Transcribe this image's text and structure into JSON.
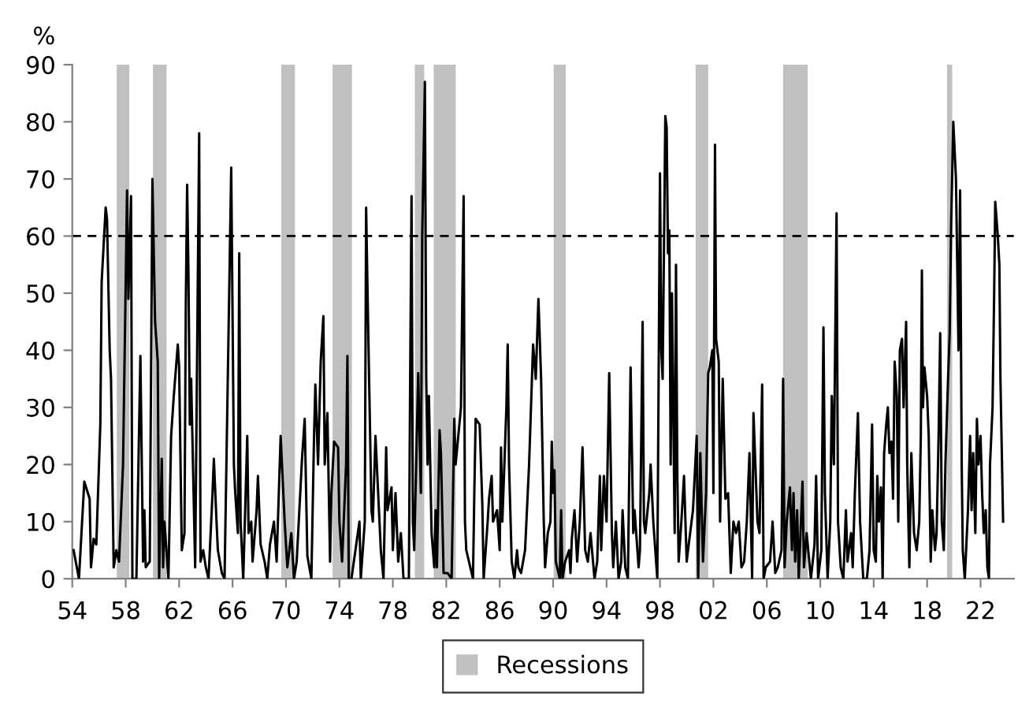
{
  "chart_data": {
    "type": "line",
    "ylabel": "%",
    "xlim": [
      1954,
      2024.5
    ],
    "ylim": [
      0,
      90
    ],
    "yticks": [
      0,
      10,
      20,
      30,
      40,
      50,
      60,
      70,
      80,
      90
    ],
    "xticks": [
      {
        "value": 1954,
        "label": "54"
      },
      {
        "value": 1958,
        "label": "58"
      },
      {
        "value": 1962,
        "label": "62"
      },
      {
        "value": 1966,
        "label": "66"
      },
      {
        "value": 1970,
        "label": "70"
      },
      {
        "value": 1974,
        "label": "74"
      },
      {
        "value": 1978,
        "label": "78"
      },
      {
        "value": 1982,
        "label": "82"
      },
      {
        "value": 1986,
        "label": "86"
      },
      {
        "value": 1990,
        "label": "90"
      },
      {
        "value": 1994,
        "label": "94"
      },
      {
        "value": 1998,
        "label": "98"
      },
      {
        "value": 2002,
        "label": "02"
      },
      {
        "value": 2006,
        "label": "06"
      },
      {
        "value": 2010,
        "label": "10"
      },
      {
        "value": 2014,
        "label": "14"
      },
      {
        "value": 2018,
        "label": "18"
      },
      {
        "value": 2022,
        "label": "22"
      }
    ],
    "grid": false,
    "legend": "bottom",
    "line_style": "solid",
    "marker": "none",
    "ref_lines": [
      {
        "axis": "y",
        "value": 60,
        "color": "#000000",
        "line_style": "dashed"
      }
    ],
    "bands": [
      {
        "axis": "x",
        "from": 1957.33,
        "to": 1958.27,
        "label": "Recessions",
        "color": "#c0c0c0"
      },
      {
        "axis": "x",
        "from": 1960.04,
        "to": 1961.06,
        "color": "#c0c0c0"
      },
      {
        "axis": "x",
        "from": 1969.65,
        "to": 1970.67,
        "color": "#c0c0c0"
      },
      {
        "axis": "x",
        "from": 1973.49,
        "to": 1974.94,
        "color": "#c0c0c0"
      },
      {
        "axis": "x",
        "from": 1979.65,
        "to": 1980.35,
        "color": "#c0c0c0"
      },
      {
        "axis": "x",
        "from": 1981.06,
        "to": 1982.71,
        "color": "#c0c0c0"
      },
      {
        "axis": "x",
        "from": 1990.04,
        "to": 1990.94,
        "color": "#c0c0c0"
      },
      {
        "axis": "x",
        "from": 2000.67,
        "to": 2001.61,
        "color": "#c0c0c0"
      },
      {
        "axis": "x",
        "from": 2007.22,
        "to": 2009.06,
        "color": "#c0c0c0"
      },
      {
        "axis": "x",
        "from": 2019.49,
        "to": 2019.88,
        "color": "#c0c0c0"
      }
    ],
    "series": [
      {
        "color": "#000000",
        "x": [
          1954.1,
          1954.5,
          1954.9,
          1955.3,
          1955.4,
          1955.6,
          1955.8,
          1956.1,
          1956.2,
          1956.5,
          1956.6,
          1956.8,
          1956.9,
          1957.1,
          1957.3,
          1957.5,
          1957.8,
          1958.0,
          1958.1,
          1958.2,
          1958.4,
          1958.5,
          1958.8,
          1959.1,
          1959.3,
          1959.4,
          1959.5,
          1959.8,
          1960.0,
          1960.2,
          1960.4,
          1960.5,
          1960.7,
          1960.8,
          1960.9,
          1961.2,
          1961.4,
          1961.6,
          1961.9,
          1962.0,
          1962.2,
          1962.4,
          1962.5,
          1962.6,
          1962.7,
          1962.8,
          1962.9,
          1963.2,
          1963.5,
          1963.6,
          1963.8,
          1964.0,
          1964.2,
          1964.5,
          1964.6,
          1964.8,
          1964.9,
          1965.2,
          1965.4,
          1965.9,
          1966.1,
          1966.2,
          1966.4,
          1966.5,
          1966.6,
          1966.8,
          1967.1,
          1967.2,
          1967.4,
          1967.5,
          1967.8,
          1967.9,
          1968.1,
          1968.4,
          1968.6,
          1968.8,
          1969.1,
          1969.3,
          1969.6,
          1969.9,
          1970.1,
          1970.4,
          1970.6,
          1970.8,
          1971.2,
          1971.4,
          1971.6,
          1971.9,
          1972.1,
          1972.2,
          1972.4,
          1972.6,
          1972.8,
          1972.9,
          1973.1,
          1973.3,
          1973.4,
          1973.6,
          1973.9,
          1974.0,
          1974.2,
          1974.5,
          1974.6,
          1974.7,
          1974.9,
          1975.5,
          1975.6,
          1975.9,
          1976.0,
          1976.1,
          1976.4,
          1976.5,
          1976.7,
          1976.9,
          1977.1,
          1977.3,
          1977.5,
          1977.6,
          1977.9,
          1978.0,
          1978.2,
          1978.4,
          1978.6,
          1978.8,
          1979.2,
          1979.3,
          1979.4,
          1979.5,
          1979.6,
          1979.9,
          1980.0,
          1980.1,
          1980.2,
          1980.4,
          1980.5,
          1980.6,
          1980.7,
          1980.9,
          1981.1,
          1981.2,
          1981.3,
          1981.5,
          1981.6,
          1981.8,
          1982.1,
          1982.4,
          1982.6,
          1982.7,
          1983.1,
          1983.3,
          1983.4,
          1983.5,
          1983.8,
          1984.0,
          1984.1,
          1984.2,
          1984.5,
          1984.7,
          1984.8,
          1985.1,
          1985.2,
          1985.4,
          1985.5,
          1985.8,
          1986.0,
          1986.1,
          1986.2,
          1986.5,
          1986.6,
          1986.7,
          1986.9,
          1987.1,
          1987.3,
          1987.4,
          1987.6,
          1987.9,
          1988.0,
          1988.2,
          1988.5,
          1988.7,
          1988.9,
          1989.1,
          1989.3,
          1989.4,
          1989.6,
          1989.8,
          1989.9,
          1990.0,
          1990.1,
          1990.2,
          1990.5,
          1990.6,
          1990.7,
          1990.9,
          1991.2,
          1991.3,
          1991.4,
          1991.6,
          1991.8,
          1992.0,
          1992.2,
          1992.4,
          1992.6,
          1992.8,
          1993.1,
          1993.3,
          1993.5,
          1993.6,
          1993.8,
          1994.0,
          1994.2,
          1994.4,
          1994.5,
          1994.7,
          1994.9,
          1995.1,
          1995.2,
          1995.4,
          1995.6,
          1995.8,
          1996.0,
          1996.1,
          1996.4,
          1996.5,
          1996.7,
          1996.8,
          1996.9,
          1997.2,
          1997.3,
          1997.5,
          1997.8,
          1998.0,
          1998.1,
          1998.2,
          1998.4,
          1998.5,
          1998.6,
          1998.7,
          1998.8,
          1998.9,
          1999.1,
          1999.2,
          1999.3,
          1999.4,
          1999.6,
          1999.8,
          2000.0,
          2000.1,
          2000.47,
          2000.75,
          2000.86,
          2001.02,
          2001.22,
          2001.45,
          2001.61,
          2001.73,
          2001.92,
          2002.0,
          2002.12,
          2002.2,
          2002.4,
          2002.5,
          2002.7,
          2002.9,
          2003.1,
          2003.3,
          2003.5,
          2003.7,
          2003.9,
          2004.1,
          2004.3,
          2004.5,
          2004.7,
          2004.9,
          2005.0,
          2005.3,
          2005.45,
          2005.65,
          2005.76,
          2005.92,
          2006.24,
          2006.43,
          2006.63,
          2006.82,
          2007.1,
          2007.22,
          2007.33,
          2007.49,
          2007.73,
          2007.88,
          2008.0,
          2008.12,
          2008.27,
          2008.39,
          2008.67,
          2008.78,
          2008.98,
          2009.3,
          2009.57,
          2009.69,
          2009.84,
          2010.08,
          2010.24,
          2010.35,
          2010.55,
          2010.75,
          2010.86,
          2011.02,
          2011.22,
          2011.33,
          2011.53,
          2011.73,
          2011.92,
          2012.04,
          2012.31,
          2012.43,
          2012.59,
          2012.82,
          2012.98,
          2013.22,
          2013.49,
          2013.69,
          2013.88,
          2014.0,
          2014.16,
          2014.27,
          2014.39,
          2014.55,
          2014.67,
          2014.78,
          2014.94,
          2015.06,
          2015.18,
          2015.33,
          2015.45,
          2015.57,
          2015.73,
          2015.84,
          2015.96,
          2016.12,
          2016.24,
          2016.43,
          2016.51,
          2016.67,
          2016.82,
          2017.02,
          2017.22,
          2017.41,
          2017.53,
          2017.61,
          2017.69,
          2017.8,
          2018.0,
          2018.12,
          2018.27,
          2018.39,
          2018.59,
          2018.71,
          2018.86,
          2018.98,
          2019.1,
          2019.25,
          2019.37,
          2019.57,
          2019.69,
          2019.8,
          2019.96,
          2020.16,
          2020.35,
          2020.47,
          2020.59,
          2020.67,
          2020.82,
          2021.06,
          2021.22,
          2021.33,
          2021.45,
          2021.61,
          2021.73,
          2021.84,
          2022.0,
          2022.12,
          2022.24,
          2022.39,
          2022.51,
          2022.63,
          2022.71,
          2022.9,
          2023.02,
          2023.1,
          2023.29,
          2023.41,
          2023.49,
          2023.69
        ],
        "values": [
          5,
          0,
          17,
          14,
          2,
          7,
          6,
          27,
          52,
          65,
          63,
          40,
          35,
          2,
          5,
          3,
          20,
          52,
          68,
          49,
          67,
          0,
          0,
          39,
          3,
          12,
          2,
          3,
          70,
          45,
          38,
          0,
          21,
          2,
          10,
          0,
          25,
          32,
          41,
          37,
          5,
          8,
          48,
          69,
          53,
          27,
          35,
          2,
          78,
          3,
          5,
          2,
          0,
          15,
          21,
          10,
          5,
          1,
          0,
          72,
          20,
          15,
          8,
          57,
          10,
          0,
          25,
          8,
          10,
          3,
          12,
          18,
          6,
          3,
          0,
          6,
          10,
          3,
          25,
          10,
          2,
          8,
          0,
          3,
          21,
          28,
          4,
          0,
          25,
          34,
          20,
          38,
          46,
          20,
          29,
          3,
          15,
          24,
          23,
          10,
          3,
          20,
          39,
          0,
          0,
          10,
          0,
          10,
          65,
          51,
          12,
          10,
          25,
          15,
          5,
          0,
          23,
          12,
          16,
          5,
          15,
          3,
          8,
          0,
          0,
          36,
          67,
          10,
          5,
          36,
          25,
          15,
          60,
          87,
          35,
          20,
          32,
          8,
          2,
          12,
          2,
          26,
          22,
          1,
          1,
          0,
          28,
          20,
          30,
          67,
          10,
          5,
          2,
          0,
          15,
          28,
          27,
          13,
          0,
          10,
          14,
          18,
          10,
          12,
          5,
          23,
          10,
          30,
          41,
          20,
          3,
          0,
          5,
          2,
          1,
          5,
          10,
          20,
          41,
          35,
          49,
          35,
          10,
          2,
          8,
          10,
          24,
          15,
          19,
          3,
          0,
          12,
          0,
          3,
          5,
          1,
          7,
          12,
          3,
          10,
          23,
          5,
          3,
          8,
          0,
          3,
          18,
          5,
          18,
          10,
          36,
          8,
          2,
          10,
          0,
          3,
          12,
          2,
          0,
          37,
          8,
          12,
          2,
          5,
          45,
          10,
          8,
          15,
          20,
          10,
          0,
          71,
          40,
          35,
          81,
          79,
          57,
          61,
          20,
          50,
          8,
          55,
          18,
          3,
          10,
          18,
          3,
          5,
          12,
          25,
          0,
          22,
          3,
          15,
          36,
          37,
          40,
          15,
          76,
          42,
          38,
          10,
          35,
          14,
          15,
          1,
          10,
          8,
          10,
          2,
          3,
          10,
          22,
          0,
          29,
          10,
          8,
          34,
          0,
          2,
          3,
          10,
          1,
          2,
          5,
          35,
          2,
          10,
          16,
          5,
          15,
          3,
          12,
          0,
          17,
          2,
          8,
          0,
          6,
          18,
          0,
          5,
          44,
          15,
          0,
          10,
          32,
          20,
          64,
          10,
          2,
          0,
          12,
          3,
          8,
          2,
          15,
          29,
          10,
          0,
          0,
          5,
          27,
          5,
          3,
          18,
          10,
          16,
          0,
          22,
          27,
          30,
          22,
          24,
          14,
          38,
          32,
          10,
          40,
          42,
          30,
          45,
          20,
          2,
          22,
          8,
          5,
          10,
          25,
          54,
          30,
          37,
          32,
          25,
          3,
          12,
          5,
          8,
          25,
          43,
          10,
          5,
          20,
          35,
          43,
          62,
          80,
          70,
          40,
          68,
          20,
          5,
          0,
          12,
          25,
          12,
          22,
          8,
          28,
          20,
          25,
          15,
          8,
          12,
          2,
          0,
          20,
          30,
          50,
          66,
          60,
          55,
          35,
          10
        ]
      }
    ]
  }
}
